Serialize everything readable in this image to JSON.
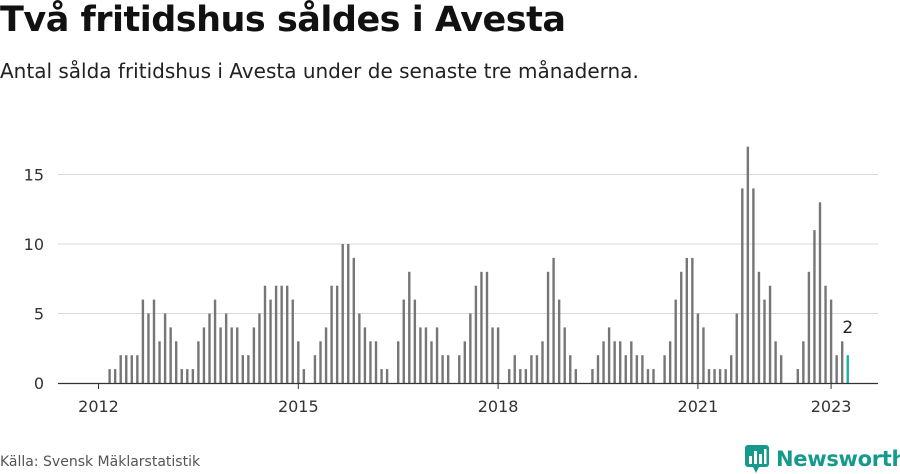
{
  "header": {
    "title": "Två fritidshus såldes i Avesta",
    "subtitle": "Antal sålda fritidshus i Avesta under de senaste tre månaderna."
  },
  "footer": {
    "source": "Källa: Svensk Mäklarstatistik",
    "brand": "Newsworthy"
  },
  "colors": {
    "bar": "#767676",
    "highlight": "#1ab0a2",
    "brand": "#159a8c",
    "grid": "#d9d9d9"
  },
  "icons": {
    "brand_logo": "newsworthy-bar-chart-logo"
  },
  "chart_data": {
    "type": "bar",
    "title": "Två fritidshus såldes i Avesta",
    "subtitle": "Antal sålda fritidshus i Avesta under de senaste tre månaderna.",
    "xlabel": "",
    "ylabel": "",
    "frequency": "monthly",
    "x_start": "2012-01",
    "x_ticks": [
      "2012",
      "2015",
      "2018",
      "2021",
      "2023"
    ],
    "y_ticks": [
      0,
      5,
      10,
      15
    ],
    "ylim": [
      0,
      17
    ],
    "grid": true,
    "legend": "none",
    "highlight_last": true,
    "last_value_label": "2",
    "values": [
      0,
      0,
      1,
      1,
      2,
      2,
      2,
      2,
      6,
      5,
      6,
      3,
      5,
      4,
      3,
      1,
      1,
      1,
      3,
      4,
      5,
      6,
      4,
      5,
      4,
      4,
      2,
      2,
      4,
      5,
      7,
      6,
      7,
      7,
      7,
      6,
      3,
      1,
      0,
      2,
      3,
      4,
      7,
      7,
      10,
      10,
      9,
      5,
      4,
      3,
      3,
      1,
      1,
      0,
      3,
      6,
      8,
      6,
      4,
      4,
      3,
      4,
      2,
      2,
      0,
      2,
      3,
      5,
      7,
      8,
      8,
      4,
      4,
      0,
      1,
      2,
      1,
      1,
      2,
      2,
      3,
      8,
      9,
      6,
      4,
      2,
      1,
      0,
      0,
      1,
      2,
      3,
      4,
      3,
      3,
      2,
      3,
      2,
      2,
      1,
      1,
      0,
      2,
      3,
      6,
      8,
      9,
      9,
      5,
      4,
      1,
      1,
      1,
      1,
      2,
      5,
      14,
      17,
      14,
      8,
      6,
      7,
      3,
      2,
      0,
      0,
      1,
      3,
      8,
      11,
      13,
      7,
      6,
      2,
      3,
      2
    ]
  }
}
